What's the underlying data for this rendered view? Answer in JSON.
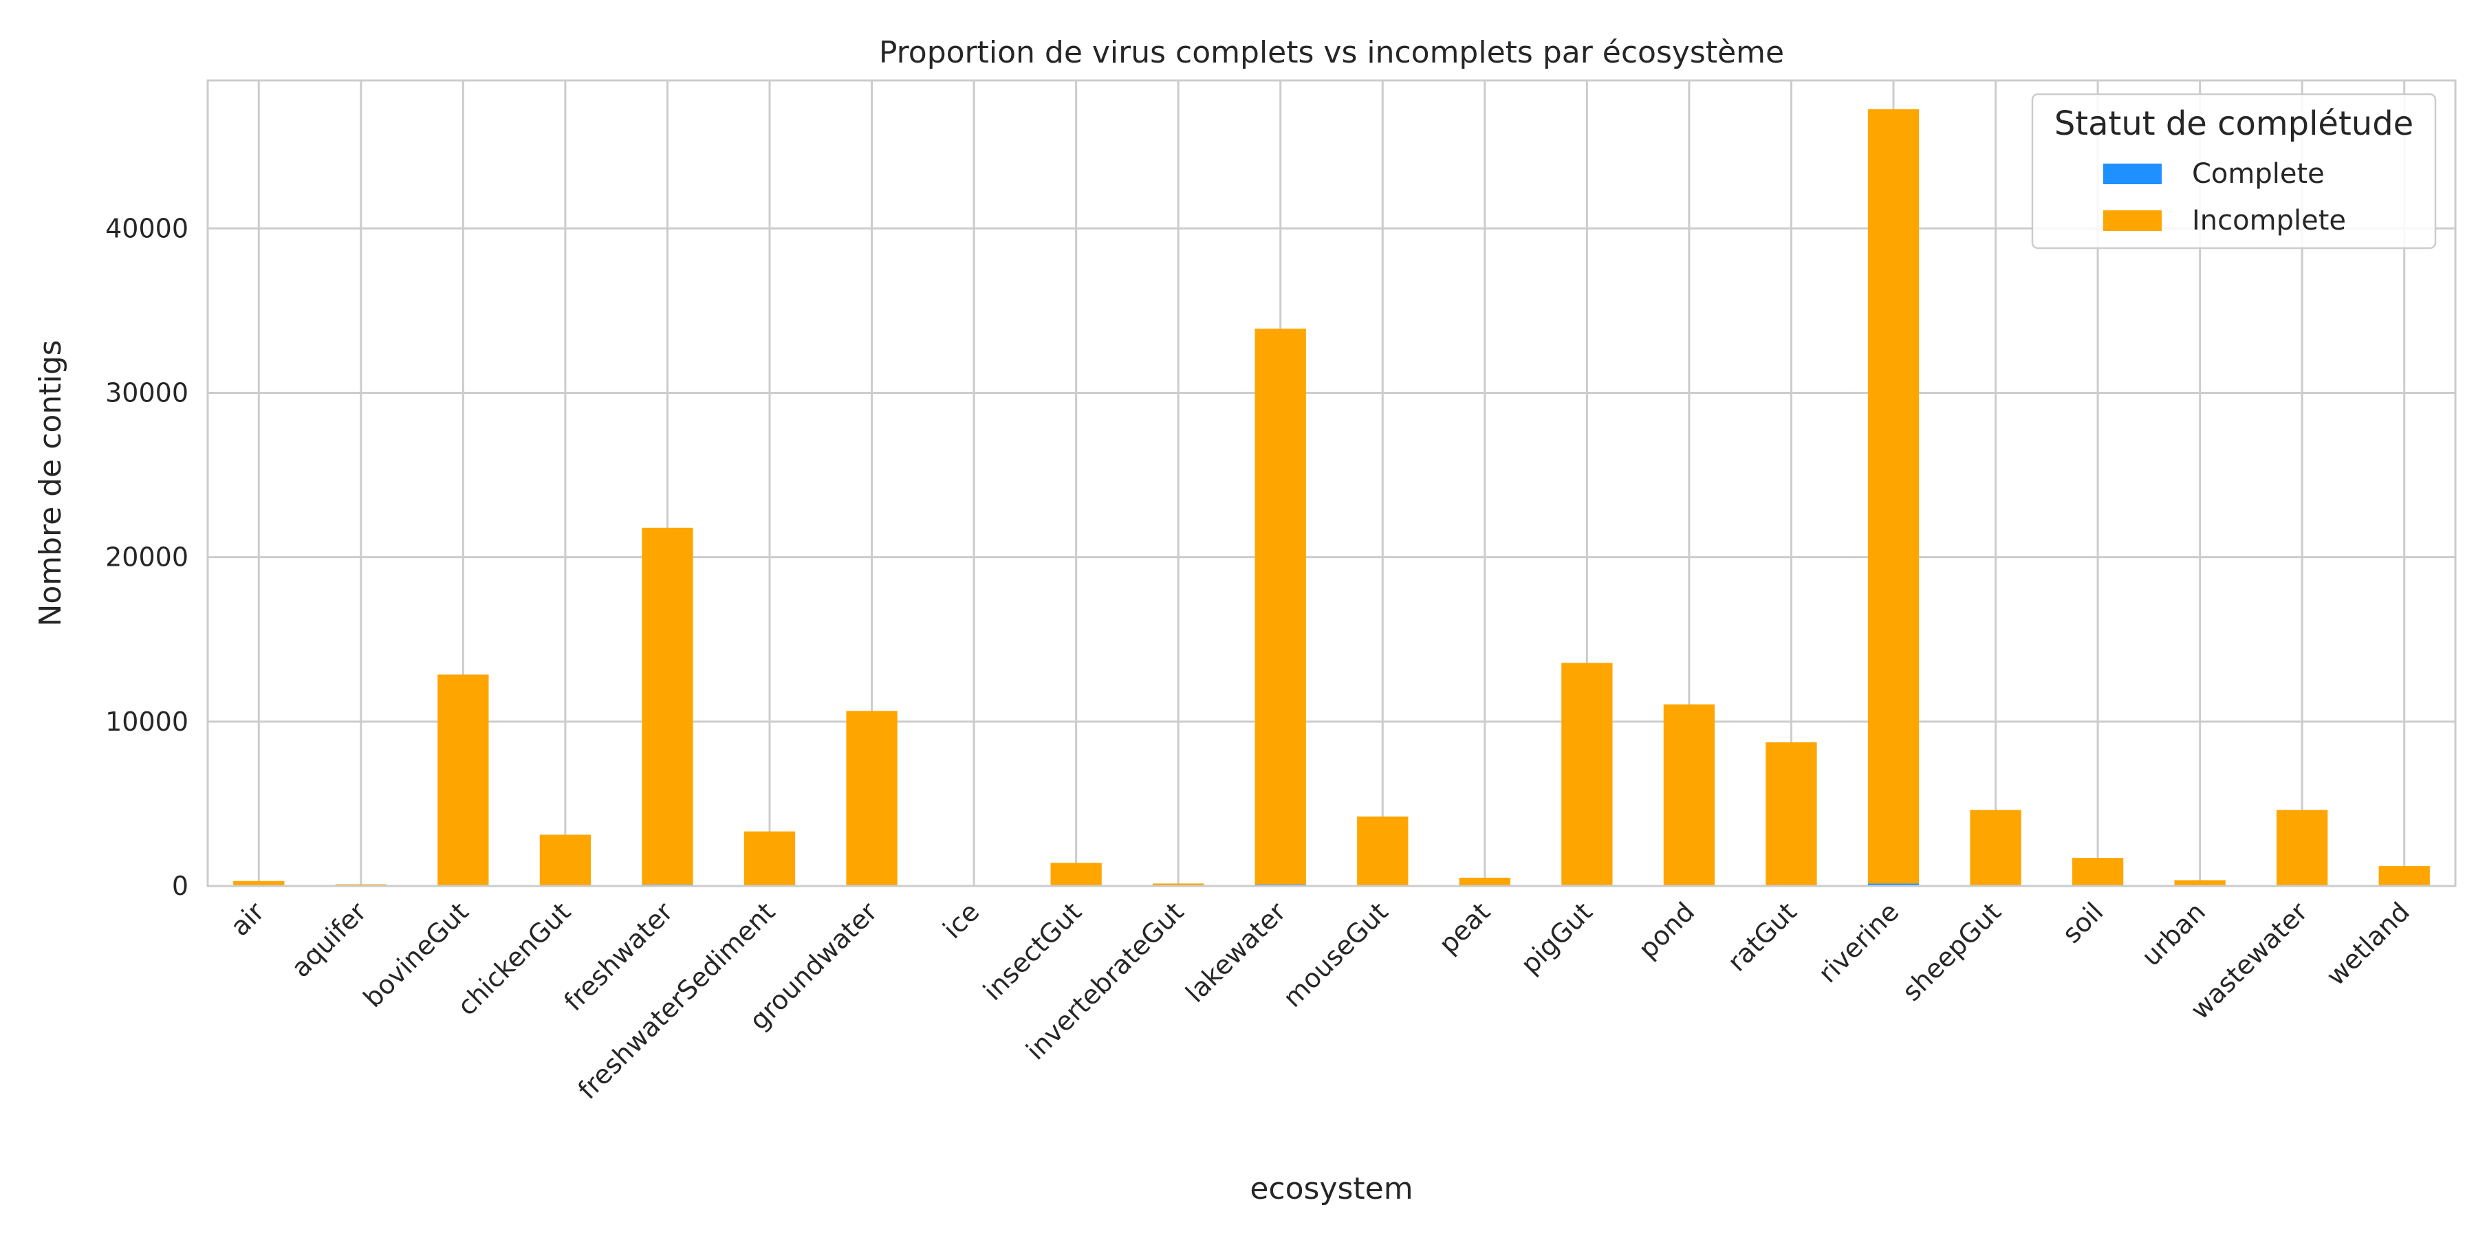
{
  "chart_data": {
    "type": "bar",
    "stacked": true,
    "title": "Proportion de virus complets vs incomplets par écosystème",
    "xlabel": "ecosystem",
    "ylabel": "Nombre de contigs",
    "ylim": [
      0,
      49000
    ],
    "yticks": [
      0,
      10000,
      20000,
      30000,
      40000
    ],
    "grid": true,
    "legend": {
      "title": "Statut de complétude",
      "placement": "top-right"
    },
    "categories": [
      "air",
      "aquifer",
      "bovineGut",
      "chickenGut",
      "freshwater",
      "freshwaterSediment",
      "groundwater",
      "ice",
      "insectGut",
      "invertebrateGut",
      "lakewater",
      "mouseGut",
      "peat",
      "pigGut",
      "pond",
      "ratGut",
      "riverine",
      "sheepGut",
      "soil",
      "urban",
      "wastewater",
      "wetland"
    ],
    "series": [
      {
        "name": "Complete",
        "color": "#1e90ff",
        "values": [
          5,
          5,
          60,
          20,
          90,
          20,
          50,
          2,
          10,
          2,
          100,
          30,
          5,
          70,
          50,
          40,
          150,
          30,
          10,
          3,
          30,
          10
        ]
      },
      {
        "name": "Incomplete",
        "color": "#ffa500",
        "values": [
          300,
          100,
          12800,
          3100,
          21700,
          3300,
          10600,
          50,
          1400,
          150,
          33800,
          4200,
          500,
          13500,
          11000,
          8700,
          47100,
          4600,
          1700,
          350,
          4600,
          1200
        ]
      }
    ]
  }
}
